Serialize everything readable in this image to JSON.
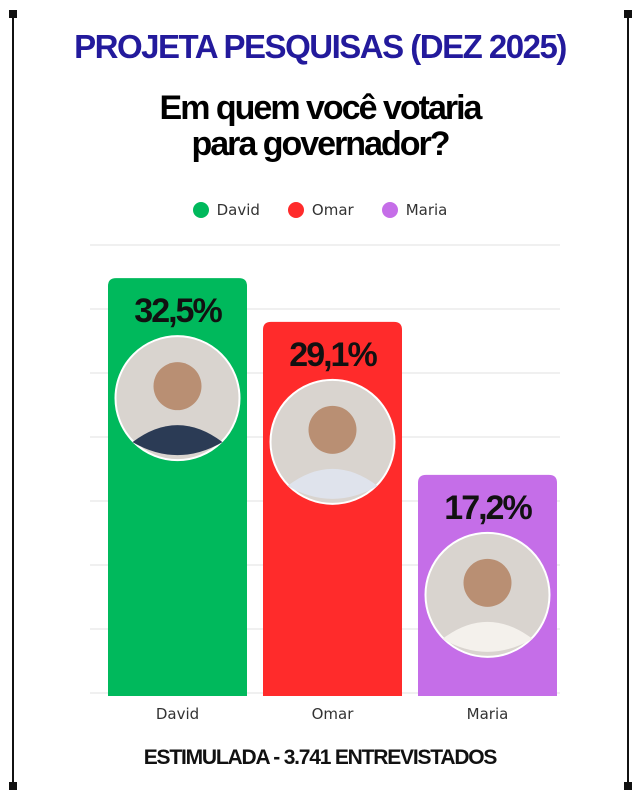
{
  "title": "PROJETA PESQUISAS (DEZ 2025)",
  "subtitle_lines": [
    "Em quem você votaria",
    "para governador?"
  ],
  "footer": "ESTIMULADA - 3.741 ENTREVISTADOS",
  "chart_data": {
    "type": "bar",
    "title": "Em quem você votaria para governador?",
    "categories": [
      "David",
      "Omar",
      "Maria"
    ],
    "values": [
      32.5,
      29.1,
      17.2
    ],
    "value_labels": [
      "32,5%",
      "29,1%",
      "17,2%"
    ],
    "colors": [
      "#00b95c",
      "#ff2b2b",
      "#c56ee8"
    ],
    "legend": [
      "David",
      "Omar",
      "Maria"
    ],
    "legend_position": "top",
    "ylim": [
      0,
      35
    ],
    "grid": true,
    "candidate_photos": true
  }
}
